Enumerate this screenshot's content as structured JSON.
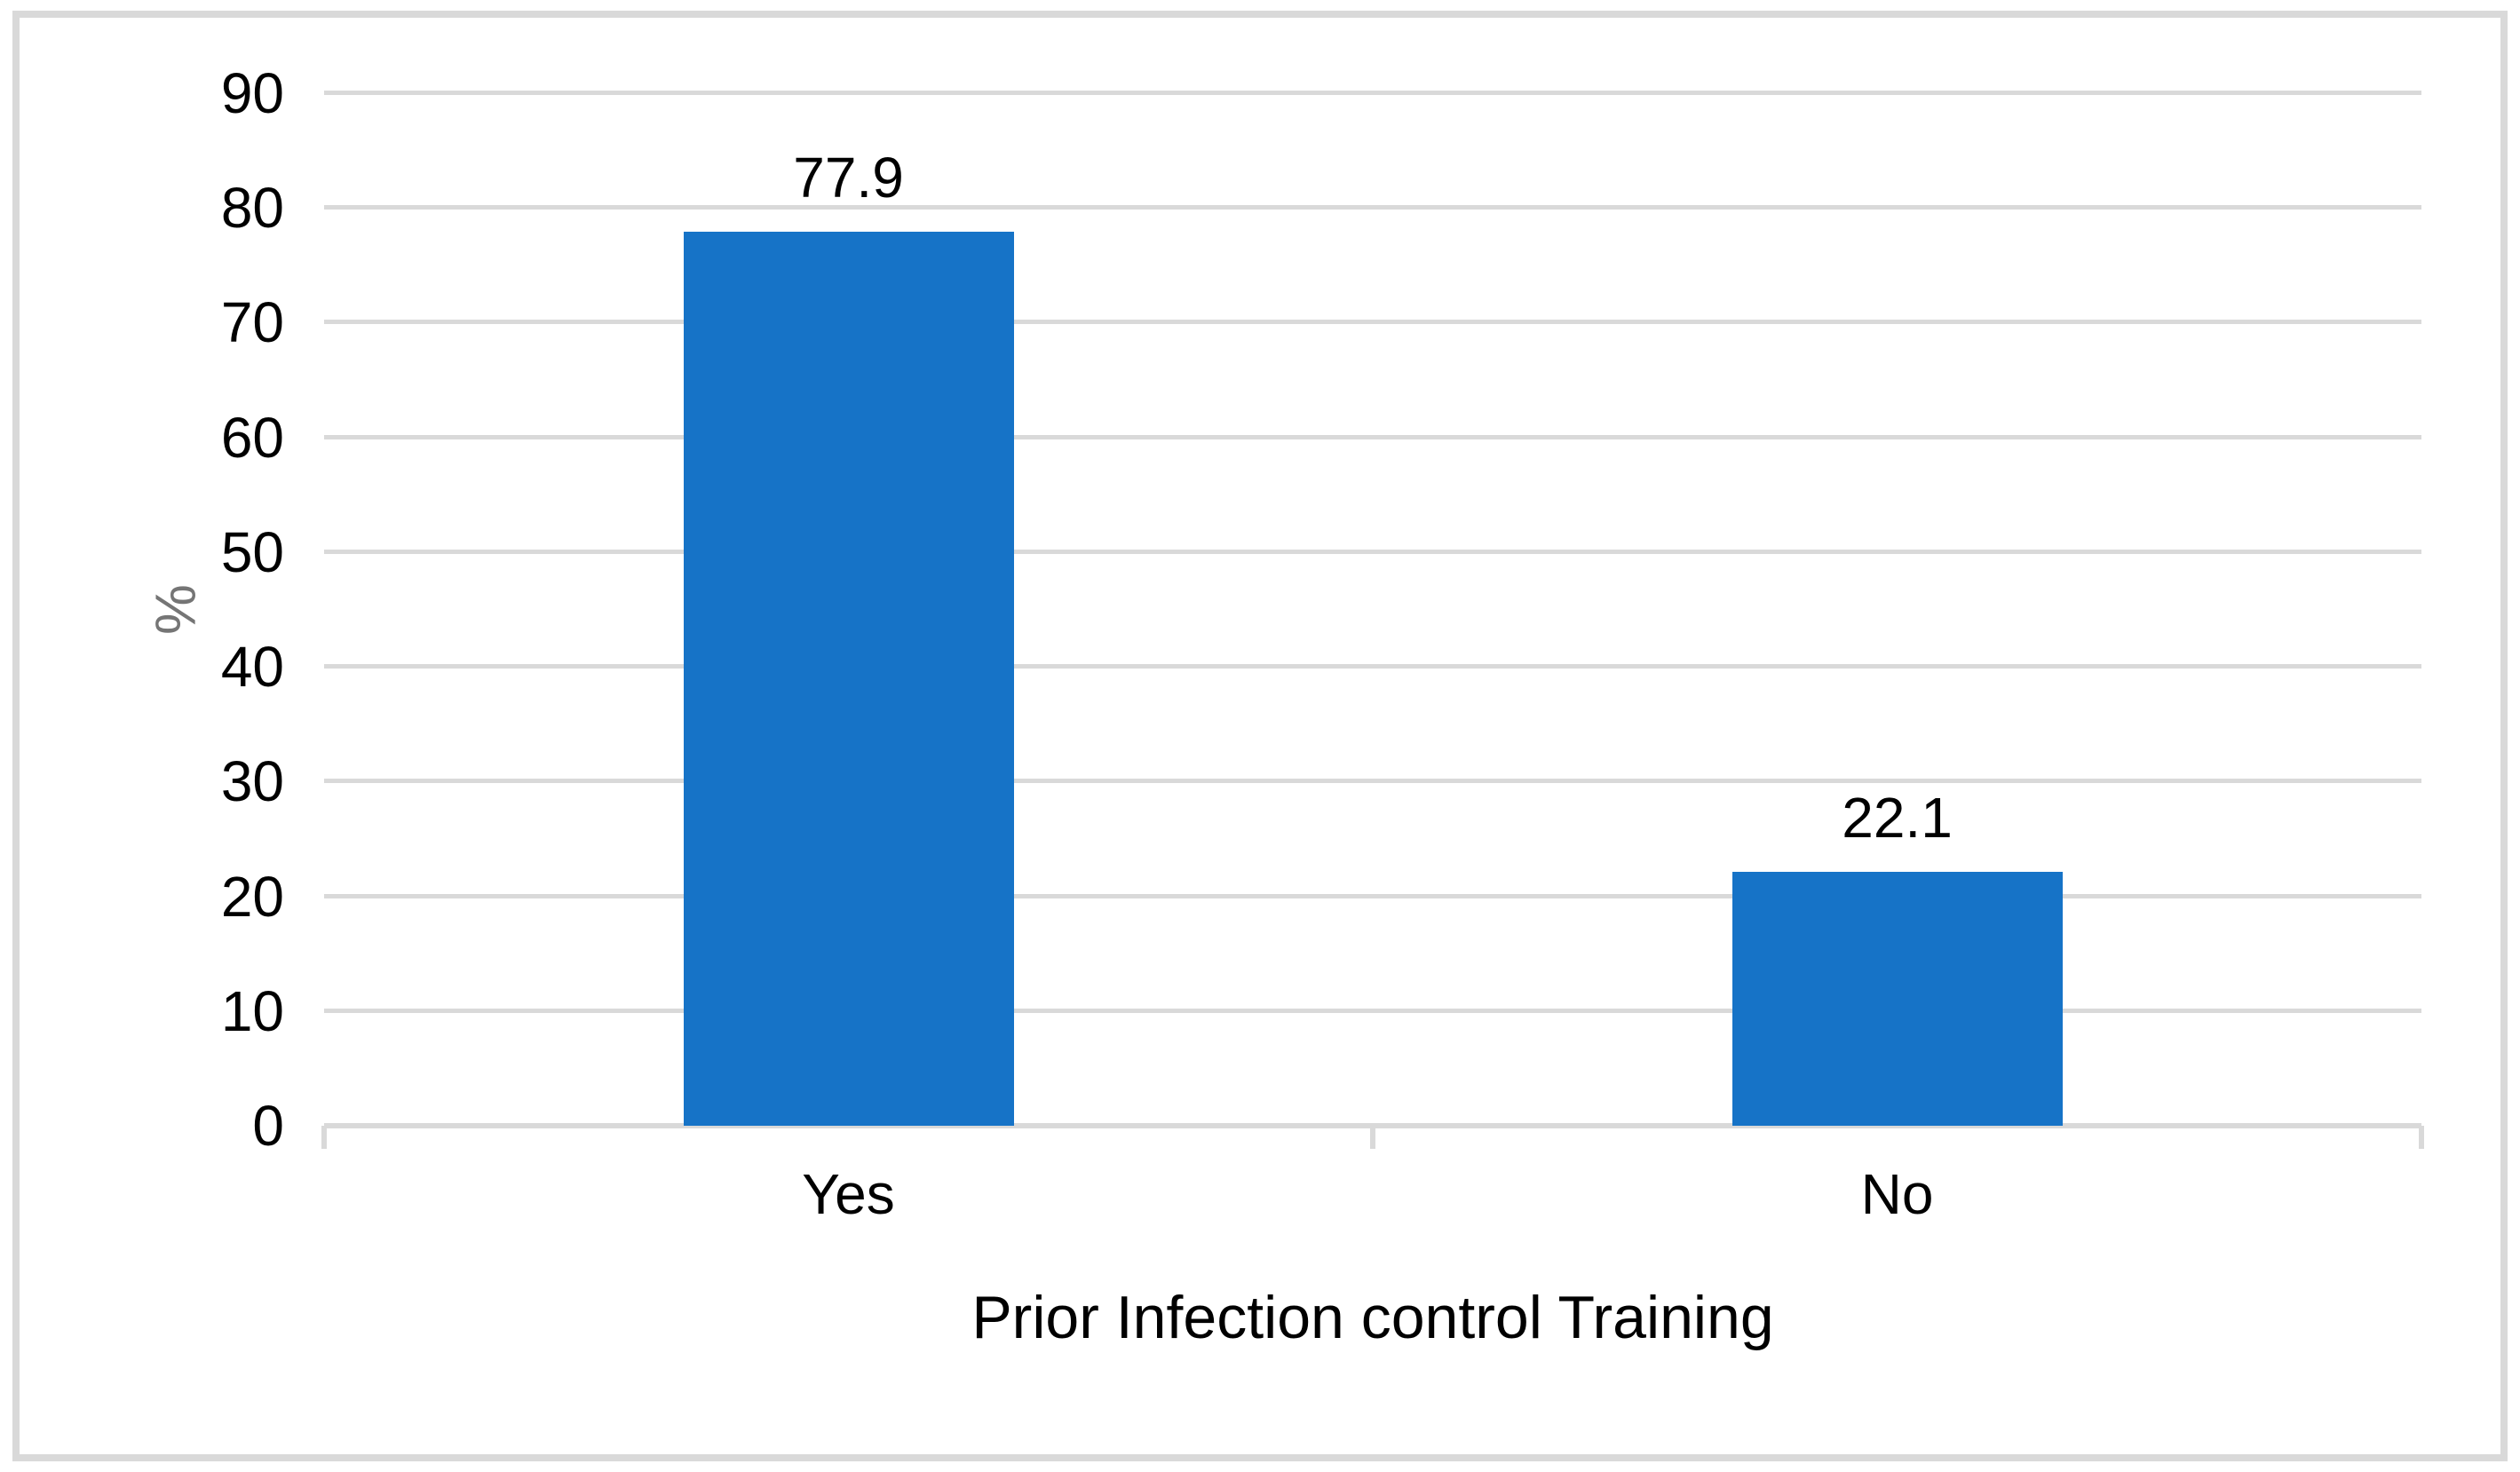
{
  "chart_data": {
    "type": "bar",
    "categories": [
      "Yes",
      "No"
    ],
    "values": [
      77.9,
      22.1
    ],
    "data_labels": [
      "77.9",
      "22.1"
    ],
    "title": "",
    "xlabel": "Prior Infection control Training",
    "ylabel": "%",
    "ylim": [
      0,
      90
    ],
    "yticks": [
      0,
      10,
      20,
      30,
      40,
      50,
      60,
      70,
      80,
      90
    ],
    "grid": true,
    "legend": false,
    "bar_color": "#1673C7"
  },
  "colors": {
    "bar": "#1673C7",
    "gridline": "#D9D9D9",
    "axis_line": "#D9D9D9",
    "figure_border": "#D9D9D9",
    "tick_label_text": "#000000",
    "y_axis_title_text": "#757575",
    "background": "#FFFFFF"
  }
}
